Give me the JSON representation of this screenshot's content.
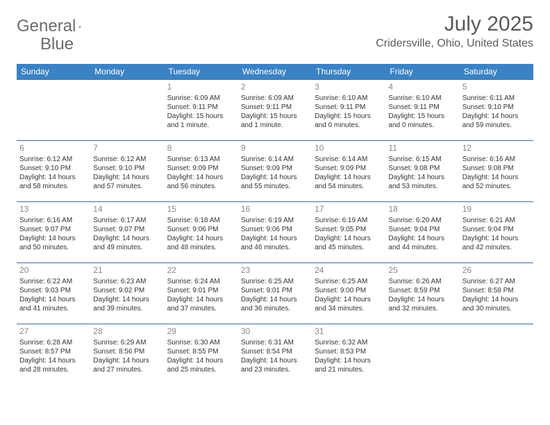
{
  "brand": {
    "general": "General",
    "blue": "Blue"
  },
  "title": "July 2025",
  "location": "Cridersville, Ohio, United States",
  "colors": {
    "header_bg": "#3b82c4",
    "header_fg": "#ffffff",
    "rule": "#3b6fa0",
    "text": "#333333",
    "muted": "#888888",
    "title_color": "#5a5a5a"
  },
  "weekdays": [
    "Sunday",
    "Monday",
    "Tuesday",
    "Wednesday",
    "Thursday",
    "Friday",
    "Saturday"
  ],
  "weeks": [
    [
      null,
      null,
      {
        "n": "1",
        "sr": "Sunrise: 6:09 AM",
        "ss": "Sunset: 9:11 PM",
        "d1": "Daylight: 15 hours",
        "d2": "and 1 minute."
      },
      {
        "n": "2",
        "sr": "Sunrise: 6:09 AM",
        "ss": "Sunset: 9:11 PM",
        "d1": "Daylight: 15 hours",
        "d2": "and 1 minute."
      },
      {
        "n": "3",
        "sr": "Sunrise: 6:10 AM",
        "ss": "Sunset: 9:11 PM",
        "d1": "Daylight: 15 hours",
        "d2": "and 0 minutes."
      },
      {
        "n": "4",
        "sr": "Sunrise: 6:10 AM",
        "ss": "Sunset: 9:11 PM",
        "d1": "Daylight: 15 hours",
        "d2": "and 0 minutes."
      },
      {
        "n": "5",
        "sr": "Sunrise: 6:11 AM",
        "ss": "Sunset: 9:10 PM",
        "d1": "Daylight: 14 hours",
        "d2": "and 59 minutes."
      }
    ],
    [
      {
        "n": "6",
        "sr": "Sunrise: 6:12 AM",
        "ss": "Sunset: 9:10 PM",
        "d1": "Daylight: 14 hours",
        "d2": "and 58 minutes."
      },
      {
        "n": "7",
        "sr": "Sunrise: 6:12 AM",
        "ss": "Sunset: 9:10 PM",
        "d1": "Daylight: 14 hours",
        "d2": "and 57 minutes."
      },
      {
        "n": "8",
        "sr": "Sunrise: 6:13 AM",
        "ss": "Sunset: 9:09 PM",
        "d1": "Daylight: 14 hours",
        "d2": "and 56 minutes."
      },
      {
        "n": "9",
        "sr": "Sunrise: 6:14 AM",
        "ss": "Sunset: 9:09 PM",
        "d1": "Daylight: 14 hours",
        "d2": "and 55 minutes."
      },
      {
        "n": "10",
        "sr": "Sunrise: 6:14 AM",
        "ss": "Sunset: 9:09 PM",
        "d1": "Daylight: 14 hours",
        "d2": "and 54 minutes."
      },
      {
        "n": "11",
        "sr": "Sunrise: 6:15 AM",
        "ss": "Sunset: 9:08 PM",
        "d1": "Daylight: 14 hours",
        "d2": "and 53 minutes."
      },
      {
        "n": "12",
        "sr": "Sunrise: 6:16 AM",
        "ss": "Sunset: 9:08 PM",
        "d1": "Daylight: 14 hours",
        "d2": "and 52 minutes."
      }
    ],
    [
      {
        "n": "13",
        "sr": "Sunrise: 6:16 AM",
        "ss": "Sunset: 9:07 PM",
        "d1": "Daylight: 14 hours",
        "d2": "and 50 minutes."
      },
      {
        "n": "14",
        "sr": "Sunrise: 6:17 AM",
        "ss": "Sunset: 9:07 PM",
        "d1": "Daylight: 14 hours",
        "d2": "and 49 minutes."
      },
      {
        "n": "15",
        "sr": "Sunrise: 6:18 AM",
        "ss": "Sunset: 9:06 PM",
        "d1": "Daylight: 14 hours",
        "d2": "and 48 minutes."
      },
      {
        "n": "16",
        "sr": "Sunrise: 6:19 AM",
        "ss": "Sunset: 9:06 PM",
        "d1": "Daylight: 14 hours",
        "d2": "and 46 minutes."
      },
      {
        "n": "17",
        "sr": "Sunrise: 6:19 AM",
        "ss": "Sunset: 9:05 PM",
        "d1": "Daylight: 14 hours",
        "d2": "and 45 minutes."
      },
      {
        "n": "18",
        "sr": "Sunrise: 6:20 AM",
        "ss": "Sunset: 9:04 PM",
        "d1": "Daylight: 14 hours",
        "d2": "and 44 minutes."
      },
      {
        "n": "19",
        "sr": "Sunrise: 6:21 AM",
        "ss": "Sunset: 9:04 PM",
        "d1": "Daylight: 14 hours",
        "d2": "and 42 minutes."
      }
    ],
    [
      {
        "n": "20",
        "sr": "Sunrise: 6:22 AM",
        "ss": "Sunset: 9:03 PM",
        "d1": "Daylight: 14 hours",
        "d2": "and 41 minutes."
      },
      {
        "n": "21",
        "sr": "Sunrise: 6:23 AM",
        "ss": "Sunset: 9:02 PM",
        "d1": "Daylight: 14 hours",
        "d2": "and 39 minutes."
      },
      {
        "n": "22",
        "sr": "Sunrise: 6:24 AM",
        "ss": "Sunset: 9:01 PM",
        "d1": "Daylight: 14 hours",
        "d2": "and 37 minutes."
      },
      {
        "n": "23",
        "sr": "Sunrise: 6:25 AM",
        "ss": "Sunset: 9:01 PM",
        "d1": "Daylight: 14 hours",
        "d2": "and 36 minutes."
      },
      {
        "n": "24",
        "sr": "Sunrise: 6:25 AM",
        "ss": "Sunset: 9:00 PM",
        "d1": "Daylight: 14 hours",
        "d2": "and 34 minutes."
      },
      {
        "n": "25",
        "sr": "Sunrise: 6:26 AM",
        "ss": "Sunset: 8:59 PM",
        "d1": "Daylight: 14 hours",
        "d2": "and 32 minutes."
      },
      {
        "n": "26",
        "sr": "Sunrise: 6:27 AM",
        "ss": "Sunset: 8:58 PM",
        "d1": "Daylight: 14 hours",
        "d2": "and 30 minutes."
      }
    ],
    [
      {
        "n": "27",
        "sr": "Sunrise: 6:28 AM",
        "ss": "Sunset: 8:57 PM",
        "d1": "Daylight: 14 hours",
        "d2": "and 28 minutes."
      },
      {
        "n": "28",
        "sr": "Sunrise: 6:29 AM",
        "ss": "Sunset: 8:56 PM",
        "d1": "Daylight: 14 hours",
        "d2": "and 27 minutes."
      },
      {
        "n": "29",
        "sr": "Sunrise: 6:30 AM",
        "ss": "Sunset: 8:55 PM",
        "d1": "Daylight: 14 hours",
        "d2": "and 25 minutes."
      },
      {
        "n": "30",
        "sr": "Sunrise: 6:31 AM",
        "ss": "Sunset: 8:54 PM",
        "d1": "Daylight: 14 hours",
        "d2": "and 23 minutes."
      },
      {
        "n": "31",
        "sr": "Sunrise: 6:32 AM",
        "ss": "Sunset: 8:53 PM",
        "d1": "Daylight: 14 hours",
        "d2": "and 21 minutes."
      },
      null,
      null
    ]
  ]
}
